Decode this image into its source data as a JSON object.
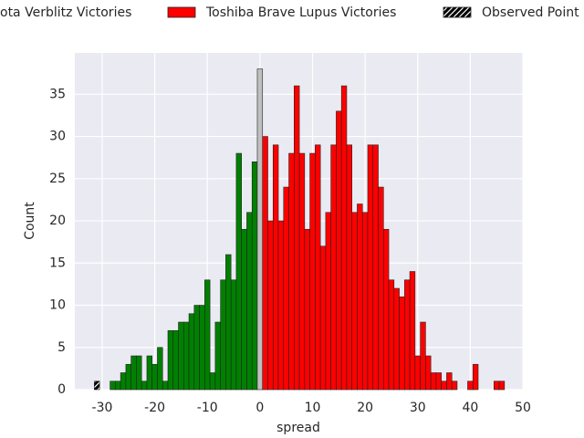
{
  "chart_data": {
    "type": "histogram",
    "x_label": "spread",
    "y_label": "Count",
    "bins": [
      -31.5,
      -30.5,
      -29.5,
      -28.5,
      -27.5,
      -26.5,
      -25.5,
      -24.5,
      -23.5,
      -22.5,
      -21.5,
      -20.5,
      -19.5,
      -18.5,
      -17.5,
      -16.5,
      -15.5,
      -14.5,
      -13.5,
      -12.5,
      -11.5,
      -10.5,
      -9.5,
      -8.5,
      -7.5,
      -6.5,
      -5.5,
      -4.5,
      -3.5,
      -2.5,
      -1.5,
      -0.5,
      0.5,
      1.5,
      2.5,
      3.5,
      4.5,
      5.5,
      6.5,
      7.5,
      8.5,
      9.5,
      10.5,
      11.5,
      12.5,
      13.5,
      14.5,
      15.5,
      16.5,
      17.5,
      18.5,
      19.5,
      20.5,
      21.5,
      22.5,
      23.5,
      24.5,
      25.5,
      26.5,
      27.5,
      28.5,
      29.5,
      30.5,
      31.5,
      32.5,
      33.5,
      34.5,
      35.5,
      36.5,
      37.5,
      38.5,
      39.5,
      40.5,
      41.5,
      42.5,
      43.5,
      44.5,
      45.5,
      46.5
    ],
    "series": [
      {
        "name": "ota Verblitz Victories",
        "color": "#008000",
        "values": [
          0,
          0,
          0,
          1,
          1,
          2,
          3,
          4,
          4,
          1,
          4,
          3,
          5,
          1,
          7,
          7,
          8,
          8,
          9,
          10,
          10,
          13,
          2,
          8,
          13,
          16,
          13,
          28,
          19,
          21,
          27,
          0,
          0,
          0,
          0,
          0,
          0,
          0,
          0,
          0,
          0,
          0,
          0,
          0,
          0,
          0,
          0,
          0,
          0,
          0,
          0,
          0,
          0,
          0,
          0,
          0,
          0,
          0,
          0,
          0,
          0,
          0,
          0,
          0,
          0,
          0,
          0,
          0,
          0,
          0,
          0,
          0,
          0,
          0,
          0,
          0,
          0,
          0
        ]
      },
      {
        "color": "#c0c0c0",
        "values": [
          0,
          0,
          0,
          0,
          0,
          0,
          0,
          0,
          0,
          0,
          0,
          0,
          0,
          0,
          0,
          0,
          0,
          0,
          0,
          0,
          0,
          0,
          0,
          0,
          0,
          0,
          0,
          0,
          0,
          0,
          0,
          38,
          0,
          0,
          0,
          0,
          0,
          0,
          0,
          0,
          0,
          0,
          0,
          0,
          0,
          0,
          0,
          0,
          0,
          0,
          0,
          0,
          0,
          0,
          0,
          0,
          0,
          0,
          0,
          0,
          0,
          0,
          0,
          0,
          0,
          0,
          0,
          0,
          0,
          0,
          0,
          0,
          0,
          0,
          0,
          0,
          0,
          0
        ]
      },
      {
        "name": "Toshiba Brave Lupus Victories",
        "color": "#ff0000",
        "values": [
          0,
          0,
          0,
          0,
          0,
          0,
          0,
          0,
          0,
          0,
          0,
          0,
          0,
          0,
          0,
          0,
          0,
          0,
          0,
          0,
          0,
          0,
          0,
          0,
          0,
          0,
          0,
          0,
          0,
          0,
          0,
          0,
          30,
          20,
          29,
          20,
          24,
          28,
          36,
          28,
          19,
          28,
          29,
          17,
          21,
          29,
          33,
          36,
          29,
          21,
          22,
          21,
          29,
          29,
          24,
          19,
          13,
          12,
          11,
          13,
          14,
          4,
          8,
          4,
          2,
          2,
          1,
          2,
          1,
          0,
          0,
          1,
          3,
          0,
          0,
          0,
          1,
          1
        ]
      },
      {
        "name": "Observed Point",
        "color": "#000000",
        "hatch": true,
        "values": [
          1,
          0,
          0,
          0,
          0,
          0,
          0,
          0,
          0,
          0,
          0,
          0,
          0,
          0,
          0,
          0,
          0,
          0,
          0,
          0,
          0,
          0,
          0,
          0,
          0,
          0,
          0,
          0,
          0,
          0,
          0,
          0,
          0,
          0,
          0,
          0,
          0,
          0,
          0,
          0,
          0,
          0,
          0,
          0,
          0,
          0,
          0,
          0,
          0,
          0,
          0,
          0,
          0,
          0,
          0,
          0,
          0,
          0,
          0,
          0,
          0,
          0,
          0,
          0,
          0,
          0,
          0,
          0,
          0,
          0,
          0,
          0,
          0,
          0,
          0,
          0,
          0,
          0
        ]
      }
    ],
    "xlim": [
      -35.2,
      50
    ],
    "xticks": [
      -30,
      -20,
      -10,
      0,
      10,
      20,
      30,
      40,
      50
    ],
    "ylim": [
      0,
      39.9
    ],
    "yticks": [
      0,
      5,
      10,
      15,
      20,
      25,
      30,
      35
    ],
    "grid": true
  }
}
